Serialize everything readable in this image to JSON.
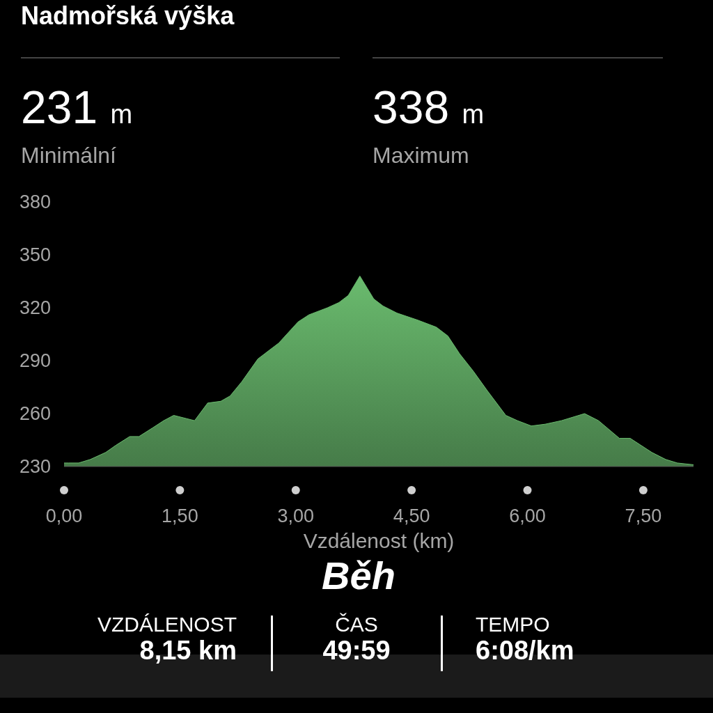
{
  "chart_data": {
    "type": "area",
    "title": "Nadmořská výška",
    "xlabel": "Vzdálenost (km)",
    "annotations": [
      "231 m",
      "Minimální",
      "338 m",
      "Maximum",
      "Běh",
      "VZDÁLENOST",
      "8,15 km",
      "ČAS",
      "49:59",
      "TEMPO",
      "6:08/km"
    ],
    "x": [
      0,
      0.06,
      0.19,
      0.34,
      0.54,
      0.67,
      0.85,
      0.97,
      1.15,
      1.29,
      1.42,
      1.69,
      1.86,
      2.03,
      2.15,
      2.3,
      2.51,
      2.6,
      2.78,
      3.03,
      3.17,
      3.41,
      3.56,
      3.68,
      3.83,
      4.01,
      4.13,
      4.31,
      4.58,
      4.82,
      4.97,
      5.12,
      5.3,
      5.48,
      5.72,
      5.87,
      6.05,
      6.23,
      6.44,
      6.74,
      6.92,
      7.19,
      7.33,
      7.61,
      7.79,
      7.94,
      8.15
    ],
    "values": [
      232,
      232,
      232,
      234,
      238,
      242,
      247,
      247,
      252,
      256,
      259,
      256,
      266,
      267,
      270,
      278,
      291,
      294,
      300,
      312,
      316,
      320,
      323,
      327,
      338,
      325,
      321,
      317,
      313,
      309,
      304,
      294,
      284,
      273,
      259,
      256,
      253,
      254,
      256,
      260,
      256,
      246,
      246,
      238,
      234,
      232,
      231
    ],
    "color": "#6abb6e",
    "xlim": [
      0,
      8.15
    ],
    "xticks": [
      {
        "value": 0,
        "label": "0,00"
      },
      {
        "value": 1.5,
        "label": "1,50"
      },
      {
        "value": 3,
        "label": "3,00"
      },
      {
        "value": 4.5,
        "label": "4,50"
      },
      {
        "value": 6,
        "label": "6,00"
      },
      {
        "value": 7.5,
        "label": "7,50"
      }
    ],
    "ylim": [
      230,
      380
    ],
    "yticks": [
      230,
      260,
      290,
      320,
      350,
      380
    ]
  }
}
